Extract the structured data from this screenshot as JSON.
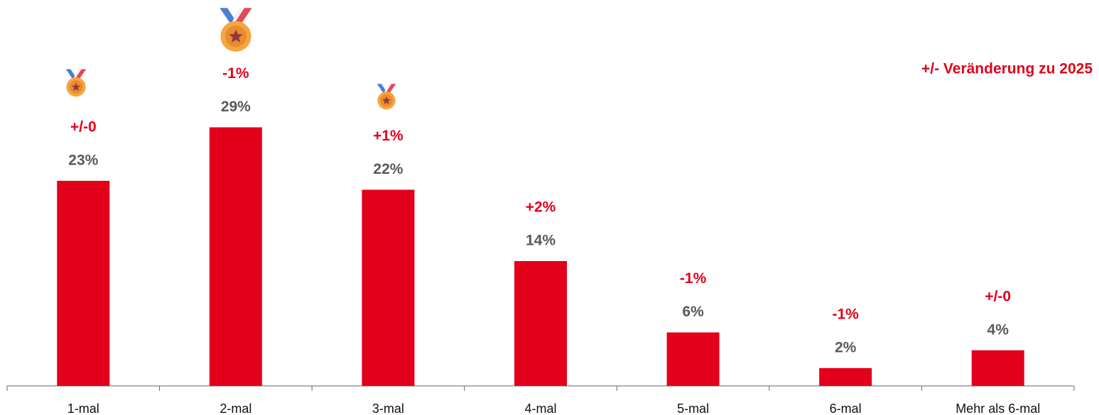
{
  "chart_data": {
    "type": "bar",
    "annotation": "+/- Veränderung zu 2025",
    "categories": [
      "1-mal",
      "2-mal",
      "3-mal",
      "4-mal",
      "5-mal",
      "6-mal",
      "Mehr als 6-mal"
    ],
    "values": [
      23,
      29,
      22,
      14,
      6,
      2,
      4
    ],
    "value_labels": [
      "23%",
      "29%",
      "22%",
      "14%",
      "6%",
      "2%",
      "4%"
    ],
    "change_labels": [
      "+/-0",
      "-1%",
      "+1%",
      "+2%",
      "-1%",
      "-1%",
      "+/-0"
    ],
    "color": "#e2001a"
  }
}
